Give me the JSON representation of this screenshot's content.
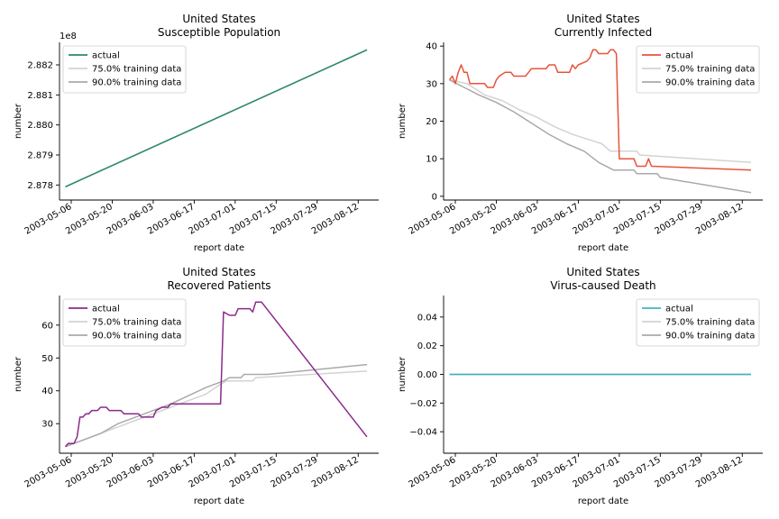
{
  "figure": {
    "legend_labels": [
      "actual",
      "75.0% training data",
      "90.0% training data"
    ],
    "x_ticks": [
      "2003-05-06",
      "2003-05-20",
      "2003-06-03",
      "2003-06-17",
      "2003-07-01",
      "2003-07-15",
      "2003-07-29",
      "2003-08-12"
    ]
  },
  "chart_data": [
    {
      "type": "line",
      "title": "United States",
      "subtitle": "Susceptible Population",
      "xlabel": "report date",
      "ylabel": "number",
      "y_offset_text": "1e8",
      "y_ticks": [
        "2.878",
        "2.879",
        "2.880",
        "2.881",
        "2.882"
      ],
      "y_tick_values": [
        287800000,
        287900000,
        288000000,
        288100000,
        288200000
      ],
      "ylim": [
        287750000,
        288275000
      ],
      "legend_position": "upper left",
      "series": [
        {
          "name": "actual",
          "color": "#2a8a6a",
          "points": [
            [
              "2003-05-04",
              287794000
            ],
            [
              "2003-08-15",
              288250000
            ]
          ]
        },
        {
          "name": "75.0% training data",
          "color": "#d3d3d3",
          "points": [
            [
              "2003-05-04",
              287794000
            ],
            [
              "2003-08-15",
              288250000
            ]
          ]
        },
        {
          "name": "90.0% training data",
          "color": "#a9a9a9",
          "points": [
            [
              "2003-05-04",
              287794000
            ],
            [
              "2003-08-15",
              288250000
            ]
          ]
        }
      ]
    },
    {
      "type": "line",
      "title": "United States",
      "subtitle": "Currently Infected",
      "xlabel": "report date",
      "ylabel": "number",
      "y_offset_text": "",
      "y_ticks": [
        "0",
        "10",
        "20",
        "30",
        "40"
      ],
      "y_tick_values": [
        0,
        10,
        20,
        30,
        40
      ],
      "ylim": [
        -1,
        41
      ],
      "legend_position": "upper right",
      "series": [
        {
          "name": "actual",
          "color": "#e8533a",
          "points": [
            [
              "2003-05-04",
              31
            ],
            [
              "2003-05-05",
              32
            ],
            [
              "2003-05-06",
              30
            ],
            [
              "2003-05-07",
              33
            ],
            [
              "2003-05-08",
              35
            ],
            [
              "2003-05-09",
              33
            ],
            [
              "2003-05-10",
              33
            ],
            [
              "2003-05-11",
              30
            ],
            [
              "2003-05-16",
              30
            ],
            [
              "2003-05-17",
              29
            ],
            [
              "2003-05-19",
              29
            ],
            [
              "2003-05-20",
              31
            ],
            [
              "2003-05-21",
              32
            ],
            [
              "2003-05-22",
              32.5
            ],
            [
              "2003-05-23",
              33
            ],
            [
              "2003-05-25",
              33
            ],
            [
              "2003-05-26",
              32
            ],
            [
              "2003-05-30",
              32
            ],
            [
              "2003-05-31",
              33
            ],
            [
              "2003-06-01",
              34
            ],
            [
              "2003-06-06",
              34
            ],
            [
              "2003-06-07",
              35
            ],
            [
              "2003-06-09",
              35
            ],
            [
              "2003-06-10",
              33
            ],
            [
              "2003-06-14",
              33
            ],
            [
              "2003-06-15",
              35
            ],
            [
              "2003-06-16",
              34
            ],
            [
              "2003-06-17",
              35
            ],
            [
              "2003-06-20",
              36
            ],
            [
              "2003-06-21",
              37
            ],
            [
              "2003-06-22",
              39
            ],
            [
              "2003-06-23",
              39
            ],
            [
              "2003-06-24",
              38
            ],
            [
              "2003-06-27",
              38
            ],
            [
              "2003-06-28",
              39
            ],
            [
              "2003-06-29",
              39
            ],
            [
              "2003-06-30",
              38
            ],
            [
              "2003-07-01",
              10
            ],
            [
              "2003-07-06",
              10
            ],
            [
              "2003-07-07",
              8
            ],
            [
              "2003-07-10",
              8
            ],
            [
              "2003-07-11",
              10
            ],
            [
              "2003-07-12",
              8
            ],
            [
              "2003-08-15",
              7
            ]
          ]
        },
        {
          "name": "75.0% training data",
          "color": "#d3d3d3",
          "points": [
            [
              "2003-05-04",
              31
            ],
            [
              "2003-05-10",
              30
            ],
            [
              "2003-05-16",
              27
            ],
            [
              "2003-05-22",
              25.5
            ],
            [
              "2003-05-28",
              23
            ],
            [
              "2003-06-03",
              21
            ],
            [
              "2003-06-09",
              18.5
            ],
            [
              "2003-06-15",
              16.5
            ],
            [
              "2003-06-21",
              15
            ],
            [
              "2003-06-25",
              14
            ],
            [
              "2003-06-28",
              12
            ],
            [
              "2003-07-01",
              12
            ],
            [
              "2003-07-07",
              12
            ],
            [
              "2003-07-08",
              11
            ],
            [
              "2003-08-15",
              9
            ]
          ]
        },
        {
          "name": "90.0% training data",
          "color": "#a9a9a9",
          "points": [
            [
              "2003-05-04",
              31
            ],
            [
              "2003-05-09",
              29
            ],
            [
              "2003-05-14",
              27
            ],
            [
              "2003-05-20",
              25
            ],
            [
              "2003-05-26",
              22.5
            ],
            [
              "2003-06-01",
              19.5
            ],
            [
              "2003-06-07",
              16.5
            ],
            [
              "2003-06-13",
              14
            ],
            [
              "2003-06-19",
              12
            ],
            [
              "2003-06-24",
              9
            ],
            [
              "2003-06-29",
              7
            ],
            [
              "2003-07-06",
              7
            ],
            [
              "2003-07-07",
              6
            ],
            [
              "2003-07-14",
              6
            ],
            [
              "2003-07-15",
              5
            ],
            [
              "2003-08-15",
              1
            ]
          ]
        }
      ]
    },
    {
      "type": "line",
      "title": "United States",
      "subtitle": "Recovered Patients",
      "xlabel": "report date",
      "ylabel": "number",
      "y_offset_text": "",
      "y_ticks": [
        "30",
        "40",
        "50",
        "60"
      ],
      "y_tick_values": [
        30,
        40,
        50,
        60
      ],
      "ylim": [
        21,
        69
      ],
      "legend_position": "upper left",
      "series": [
        {
          "name": "actual",
          "color": "#8b2a8b",
          "points": [
            [
              "2003-05-04",
              23
            ],
            [
              "2003-05-05",
              24
            ],
            [
              "2003-05-07",
              24
            ],
            [
              "2003-05-08",
              26
            ],
            [
              "2003-05-09",
              32
            ],
            [
              "2003-05-10",
              32
            ],
            [
              "2003-05-11",
              33
            ],
            [
              "2003-05-12",
              33
            ],
            [
              "2003-05-13",
              34
            ],
            [
              "2003-05-15",
              34
            ],
            [
              "2003-05-16",
              35
            ],
            [
              "2003-05-18",
              35
            ],
            [
              "2003-05-19",
              34
            ],
            [
              "2003-05-23",
              34
            ],
            [
              "2003-05-24",
              33
            ],
            [
              "2003-05-29",
              33
            ],
            [
              "2003-05-30",
              32
            ],
            [
              "2003-06-03",
              32
            ],
            [
              "2003-06-04",
              34
            ],
            [
              "2003-06-06",
              35
            ],
            [
              "2003-06-08",
              35
            ],
            [
              "2003-06-09",
              36
            ],
            [
              "2003-06-26",
              36
            ],
            [
              "2003-06-27",
              64
            ],
            [
              "2003-06-29",
              63
            ],
            [
              "2003-07-01",
              63
            ],
            [
              "2003-07-02",
              65
            ],
            [
              "2003-07-06",
              65
            ],
            [
              "2003-07-07",
              64
            ],
            [
              "2003-07-08",
              67
            ],
            [
              "2003-07-10",
              67
            ],
            [
              "2003-08-15",
              26
            ]
          ]
        },
        {
          "name": "75.0% training data",
          "color": "#d3d3d3",
          "points": [
            [
              "2003-05-04",
              23
            ],
            [
              "2003-05-10",
              25
            ],
            [
              "2003-05-16",
              27
            ],
            [
              "2003-05-22",
              29
            ],
            [
              "2003-05-28",
              31
            ],
            [
              "2003-06-03",
              33
            ],
            [
              "2003-06-09",
              35
            ],
            [
              "2003-06-15",
              37
            ],
            [
              "2003-06-21",
              39
            ],
            [
              "2003-06-26",
              42
            ],
            [
              "2003-06-28",
              43
            ],
            [
              "2003-07-07",
              43
            ],
            [
              "2003-07-08",
              44
            ],
            [
              "2003-08-15",
              46
            ]
          ]
        },
        {
          "name": "90.0% training data",
          "color": "#a9a9a9",
          "points": [
            [
              "2003-05-04",
              23
            ],
            [
              "2003-05-10",
              25
            ],
            [
              "2003-05-16",
              27
            ],
            [
              "2003-05-22",
              30
            ],
            [
              "2003-05-28",
              32
            ],
            [
              "2003-06-03",
              34
            ],
            [
              "2003-06-09",
              36
            ],
            [
              "2003-06-15",
              38.5
            ],
            [
              "2003-06-21",
              41
            ],
            [
              "2003-06-27",
              43
            ],
            [
              "2003-06-29",
              44
            ],
            [
              "2003-07-03",
              44
            ],
            [
              "2003-07-04",
              45
            ],
            [
              "2003-07-12",
              45
            ],
            [
              "2003-08-15",
              48
            ]
          ]
        }
      ]
    },
    {
      "type": "line",
      "title": "United States",
      "subtitle": "Virus-caused Death",
      "xlabel": "report date",
      "ylabel": "number",
      "y_offset_text": "",
      "y_ticks": [
        "−0.04",
        "−0.02",
        "0.00",
        "0.02",
        "0.04"
      ],
      "y_tick_values": [
        -0.04,
        -0.02,
        0,
        0.02,
        0.04
      ],
      "ylim": [
        -0.055,
        0.055
      ],
      "legend_position": "upper right",
      "series": [
        {
          "name": "actual",
          "color": "#40b4c8",
          "points": [
            [
              "2003-05-04",
              0
            ],
            [
              "2003-08-15",
              0
            ]
          ]
        },
        {
          "name": "75.0% training data",
          "color": "#d3d3d3",
          "points": [
            [
              "2003-05-04",
              0
            ],
            [
              "2003-08-15",
              0
            ]
          ]
        },
        {
          "name": "90.0% training data",
          "color": "#a9a9a9",
          "points": [
            [
              "2003-05-04",
              0
            ],
            [
              "2003-08-15",
              0
            ]
          ]
        }
      ]
    }
  ]
}
